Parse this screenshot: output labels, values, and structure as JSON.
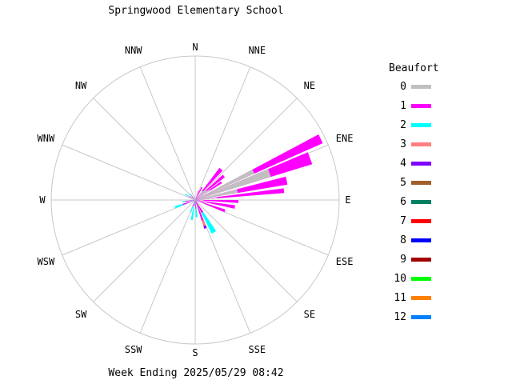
{
  "title": "Springwood Elementary School",
  "footer": "Week Ending 2025/05/29 08:42",
  "legend": {
    "title": "Beaufort",
    "items": [
      {
        "label": "0",
        "color": "#c0c0c0"
      },
      {
        "label": "1",
        "color": "#ff00ff"
      },
      {
        "label": "2",
        "color": "#00ffff"
      },
      {
        "label": "3",
        "color": "#ff8080"
      },
      {
        "label": "4",
        "color": "#8000ff"
      },
      {
        "label": "5",
        "color": "#a0602a"
      },
      {
        "label": "6",
        "color": "#008060"
      },
      {
        "label": "7",
        "color": "#ff0000"
      },
      {
        "label": "8",
        "color": "#0000ff"
      },
      {
        "label": "9",
        "color": "#a00000"
      },
      {
        "label": "10",
        "color": "#00ff00"
      },
      {
        "label": "11",
        "color": "#ff8000"
      },
      {
        "label": "12",
        "color": "#0080ff"
      }
    ]
  },
  "directions": [
    "N",
    "NNE",
    "NE",
    "ENE",
    "E",
    "ESE",
    "SE",
    "SSE",
    "S",
    "SSW",
    "SW",
    "WSW",
    "W",
    "WNW",
    "NW",
    "NNW"
  ],
  "chart_data": {
    "type": "wind-rose",
    "title": "Springwood Elementary School",
    "subtitle": "Week Ending 2025/05/29 08:42",
    "legend_title": "Beaufort",
    "legend_position": "right",
    "grid": true,
    "center": [
      244,
      250
    ],
    "radius": 180,
    "directions": [
      "N",
      "NNE",
      "NE",
      "ENE",
      "E",
      "ESE",
      "SE",
      "SSE",
      "S",
      "SSW",
      "SW",
      "WSW",
      "W",
      "WNW",
      "NW",
      "NNW"
    ],
    "units": "relative frequency (fraction of outer ring radius)",
    "petals": [
      {
        "angle": 64,
        "width": 4,
        "series": [
          {
            "beaufort": 0,
            "r": 0.45
          },
          {
            "beaufort": 1,
            "r": 0.97
          }
        ]
      },
      {
        "angle": 70,
        "width": 6,
        "series": [
          {
            "beaufort": 0,
            "r": 0.55
          },
          {
            "beaufort": 1,
            "r": 0.85
          }
        ]
      },
      {
        "angle": 78,
        "width": 5,
        "series": [
          {
            "beaufort": 0,
            "r": 0.3
          },
          {
            "beaufort": 1,
            "r": 0.65
          }
        ]
      },
      {
        "angle": 84,
        "width": 3,
        "series": [
          {
            "beaufort": 0,
            "r": 0.15
          },
          {
            "beaufort": 1,
            "r": 0.62
          }
        ]
      },
      {
        "angle": 40,
        "width": 6,
        "series": [
          {
            "beaufort": 0,
            "r": 0.08
          },
          {
            "beaufort": 1,
            "r": 0.28
          }
        ]
      },
      {
        "angle": 50,
        "width": 5,
        "series": [
          {
            "beaufort": 0,
            "r": 0.1
          },
          {
            "beaufort": 1,
            "r": 0.26
          }
        ]
      },
      {
        "angle": 56,
        "width": 4,
        "series": [
          {
            "beaufort": 0,
            "r": 0.12
          },
          {
            "beaufort": 1,
            "r": 0.22
          }
        ]
      },
      {
        "angle": 28,
        "width": 5,
        "series": [
          {
            "beaufort": 1,
            "r": 0.1
          }
        ]
      },
      {
        "angle": 92,
        "width": 4,
        "series": [
          {
            "beaufort": 0,
            "r": 0.06
          },
          {
            "beaufort": 1,
            "r": 0.3
          }
        ]
      },
      {
        "angle": 100,
        "width": 5,
        "series": [
          {
            "beaufort": 1,
            "r": 0.28
          }
        ]
      },
      {
        "angle": 110,
        "width": 5,
        "series": [
          {
            "beaufort": 1,
            "r": 0.22
          }
        ]
      },
      {
        "angle": 150,
        "width": 8,
        "series": [
          {
            "beaufort": 1,
            "r": 0.1
          },
          {
            "beaufort": 2,
            "r": 0.26
          }
        ]
      },
      {
        "angle": 160,
        "width": 5,
        "series": [
          {
            "beaufort": 1,
            "r": 0.15
          },
          {
            "beaufort": 3,
            "r": 0.19
          },
          {
            "beaufort": 4,
            "r": 0.21
          }
        ]
      },
      {
        "angle": 175,
        "width": 6,
        "series": [
          {
            "beaufort": 1,
            "r": 0.06
          },
          {
            "beaufort": 2,
            "r": 0.12
          }
        ]
      },
      {
        "angle": 190,
        "width": 6,
        "series": [
          {
            "beaufort": 1,
            "r": 0.04
          },
          {
            "beaufort": 2,
            "r": 0.14
          }
        ]
      },
      {
        "angle": 200,
        "width": 5,
        "series": [
          {
            "beaufort": 1,
            "r": 0.05
          },
          {
            "beaufort": 2,
            "r": 0.09
          }
        ]
      },
      {
        "angle": 250,
        "width": 6,
        "series": [
          {
            "beaufort": 1,
            "r": 0.09
          },
          {
            "beaufort": 2,
            "r": 0.15
          }
        ]
      },
      {
        "angle": 262,
        "width": 5,
        "series": [
          {
            "beaufort": 1,
            "r": 0.07
          },
          {
            "beaufort": 2,
            "r": 0.09
          }
        ]
      },
      {
        "angle": 300,
        "width": 5,
        "series": [
          {
            "beaufort": 1,
            "r": 0.05
          },
          {
            "beaufort": 2,
            "r": 0.08
          }
        ]
      },
      {
        "angle": 320,
        "width": 5,
        "series": [
          {
            "beaufort": 1,
            "r": 0.04
          },
          {
            "beaufort": 2,
            "r": 0.06
          }
        ]
      },
      {
        "angle": 20,
        "width": 4,
        "series": [
          {
            "beaufort": 1,
            "r": 0.07
          }
        ]
      }
    ]
  }
}
